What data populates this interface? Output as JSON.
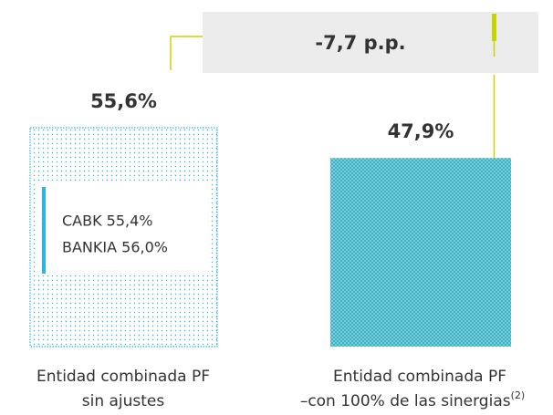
{
  "chart_data": {
    "type": "bar",
    "categories": [
      [
        "Entidad combinada PF",
        "sin ajustes"
      ],
      [
        "Entidad combinada PF",
        "–con 100% de las sinergias"
      ]
    ],
    "category_superscripts": [
      null,
      "(2)"
    ],
    "values": [
      55.6,
      47.9
    ],
    "value_labels": [
      "55,6%",
      "47,9%"
    ],
    "colors": [
      "#2bb5e6",
      "#2aa9bf"
    ],
    "annotation": "-7,7 p.p.",
    "breakdown": [
      "CABK 55,4%",
      "BANKIA 56,0%"
    ]
  }
}
